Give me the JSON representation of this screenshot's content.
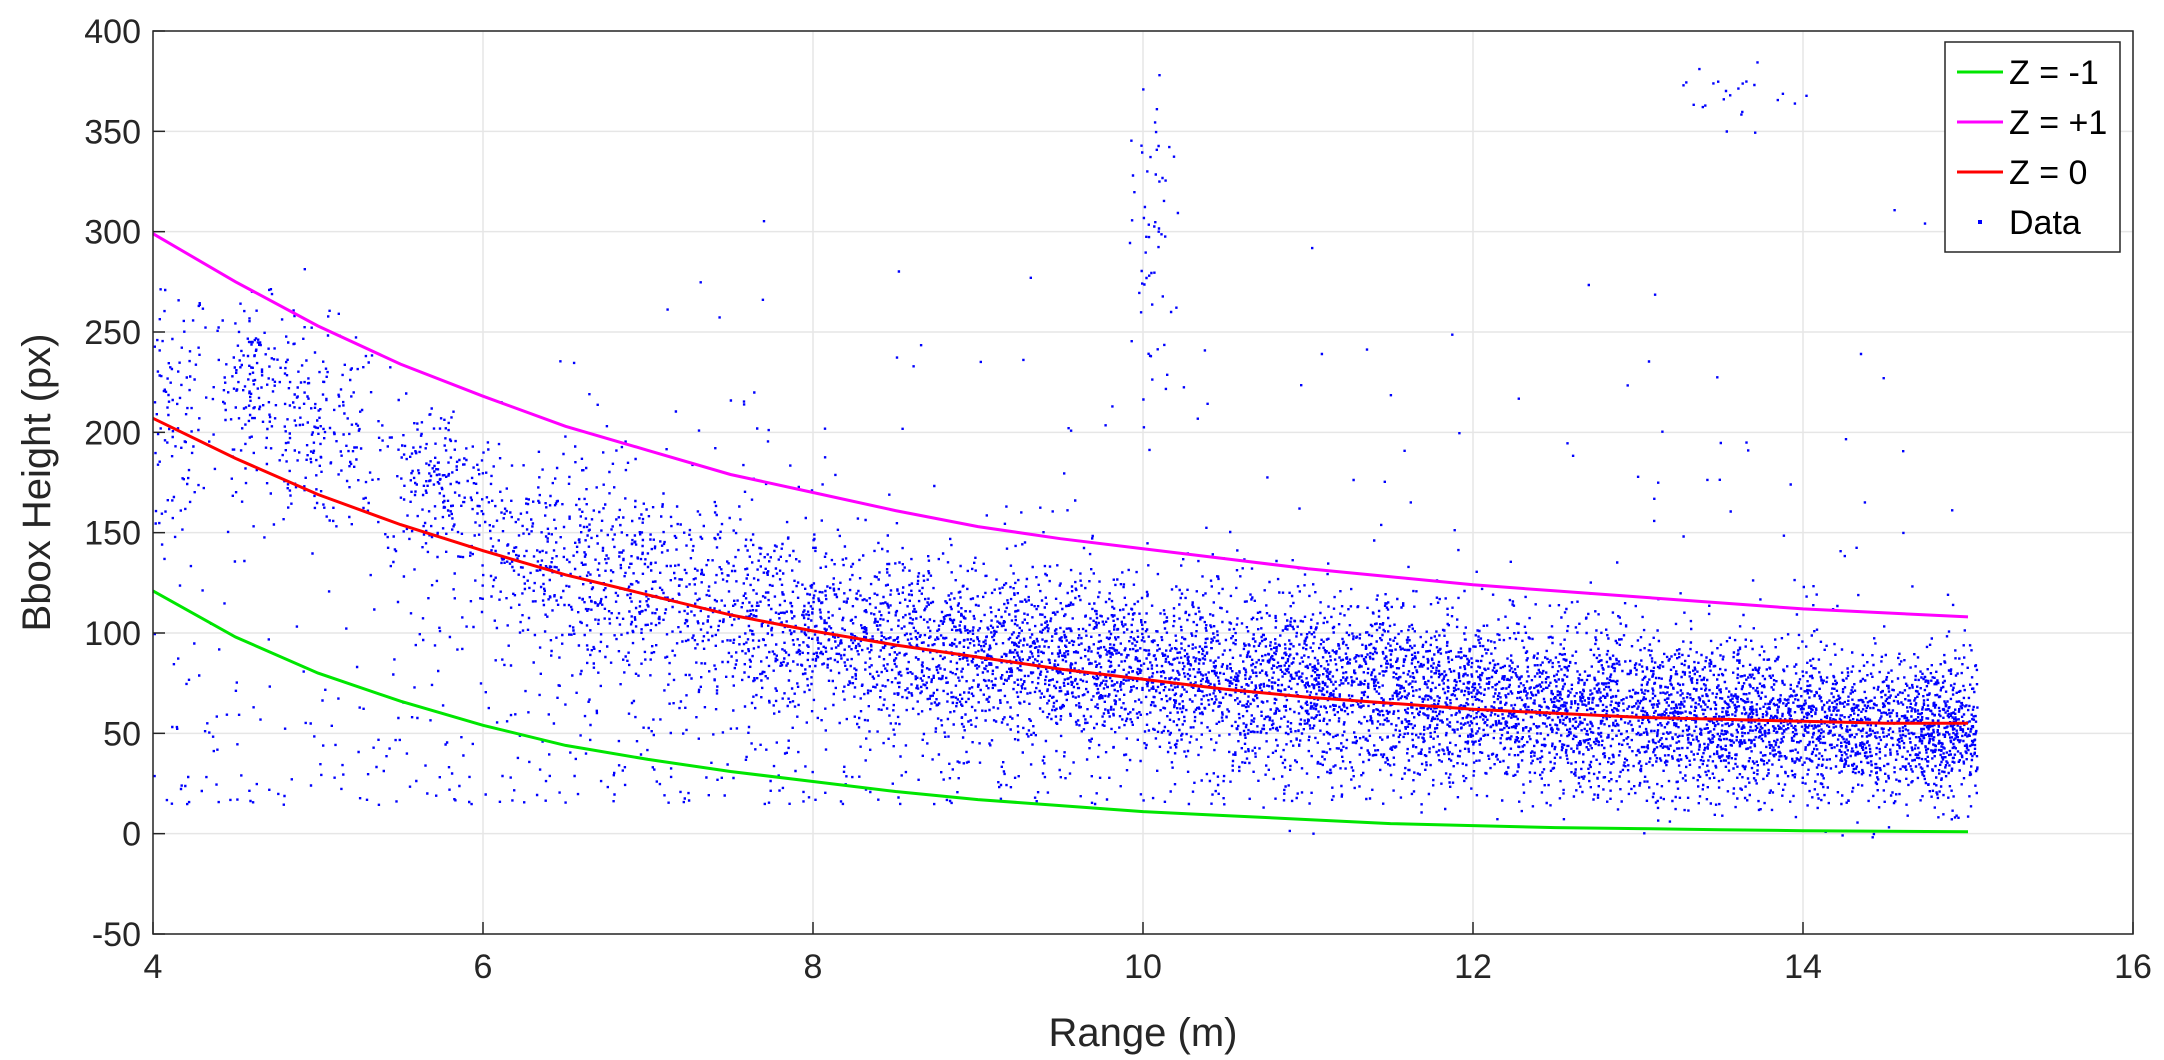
{
  "chart_data": {
    "type": "scatter",
    "title": "",
    "xlabel": "Range (m)",
    "ylabel": "Bbox Height (px)",
    "xlim": [
      4,
      16
    ],
    "ylim": [
      -50,
      400
    ],
    "xticks": [
      4,
      6,
      8,
      10,
      12,
      14,
      16
    ],
    "yticks": [
      -50,
      0,
      50,
      100,
      150,
      200,
      250,
      300,
      350,
      400
    ],
    "grid": true,
    "legend_position": "top-right",
    "series": [
      {
        "name": "Z = -1",
        "kind": "line",
        "color": "#00e600",
        "x": [
          4,
          4.5,
          5,
          5.5,
          6,
          6.5,
          7,
          7.5,
          8,
          8.5,
          9,
          9.5,
          10,
          10.5,
          11,
          11.5,
          12,
          12.5,
          13,
          13.5,
          14,
          14.5,
          15
        ],
        "y": [
          121,
          98,
          80,
          66,
          54,
          44,
          37,
          31,
          26,
          21,
          17,
          14,
          11,
          9,
          7,
          5,
          4,
          3,
          2.5,
          2,
          1.5,
          1.2,
          1
        ]
      },
      {
        "name": "Z = +1",
        "kind": "line",
        "color": "#ff00ff",
        "x": [
          4,
          4.5,
          5,
          5.5,
          6,
          6.5,
          7,
          7.5,
          8,
          8.5,
          9,
          9.5,
          10,
          10.5,
          11,
          11.5,
          12,
          12.5,
          13,
          13.5,
          14,
          14.5,
          15
        ],
        "y": [
          299,
          275,
          253,
          234,
          218,
          203,
          191,
          179,
          170,
          161,
          153,
          147,
          142,
          137,
          132,
          128,
          124,
          121,
          118,
          115,
          112,
          110,
          108
        ]
      },
      {
        "name": "Z = 0",
        "kind": "line",
        "color": "#ff0000",
        "x": [
          4,
          4.5,
          5,
          5.5,
          6,
          6.5,
          7,
          7.5,
          8,
          8.5,
          9,
          9.5,
          10,
          10.5,
          11,
          11.5,
          12,
          12.5,
          13,
          13.5,
          14,
          14.5,
          15
        ],
        "y": [
          207,
          187,
          169,
          154,
          141,
          129,
          119,
          109,
          101,
          94,
          88,
          82,
          77,
          72,
          68,
          65,
          62,
          60,
          58,
          57,
          56,
          55,
          55
        ]
      },
      {
        "name": "Data",
        "kind": "scatter",
        "color": "#0000ff",
        "note_points": "dense cloud concentrated around the Z = 0 curve between Z = -1 and Z = +1, x from 4 to 15; outliers up to ~380 px",
        "clusters": [
          {
            "x": 4.05,
            "y": 205,
            "sx": 0.15,
            "sy": 40,
            "n": 160
          },
          {
            "x": 4.6,
            "y": 230,
            "sx": 0.12,
            "sy": 18,
            "n": 140
          },
          {
            "x": 5.0,
            "y": 200,
            "sx": 0.2,
            "sy": 25,
            "n": 200
          },
          {
            "x": 5.7,
            "y": 175,
            "sx": 0.2,
            "sy": 20,
            "n": 200
          },
          {
            "x": 6.3,
            "y": 140,
            "sx": 0.3,
            "sy": 25,
            "n": 300
          },
          {
            "x": 7.0,
            "y": 120,
            "sx": 0.35,
            "sy": 28,
            "n": 420
          },
          {
            "x": 7.8,
            "y": 105,
            "sx": 0.35,
            "sy": 25,
            "n": 520
          },
          {
            "x": 8.6,
            "y": 95,
            "sx": 0.35,
            "sy": 22,
            "n": 620
          },
          {
            "x": 9.4,
            "y": 88,
            "sx": 0.35,
            "sy": 22,
            "n": 700
          },
          {
            "x": 10.2,
            "y": 80,
            "sx": 0.35,
            "sy": 22,
            "n": 750
          },
          {
            "x": 11.0,
            "y": 75,
            "sx": 0.35,
            "sy": 22,
            "n": 800
          },
          {
            "x": 11.8,
            "y": 70,
            "sx": 0.35,
            "sy": 20,
            "n": 820
          },
          {
            "x": 12.6,
            "y": 63,
            "sx": 0.35,
            "sy": 20,
            "n": 850
          },
          {
            "x": 13.4,
            "y": 58,
            "sx": 0.35,
            "sy": 19,
            "n": 880
          },
          {
            "x": 14.2,
            "y": 55,
            "sx": 0.35,
            "sy": 18,
            "n": 900
          },
          {
            "x": 14.85,
            "y": 52,
            "sx": 0.15,
            "sy": 18,
            "n": 500
          },
          {
            "x": 10.05,
            "y": 290,
            "sx": 0.06,
            "sy": 40,
            "n": 60
          },
          {
            "x": 13.6,
            "y": 368,
            "sx": 0.2,
            "sy": 8,
            "n": 25
          }
        ]
      }
    ]
  }
}
